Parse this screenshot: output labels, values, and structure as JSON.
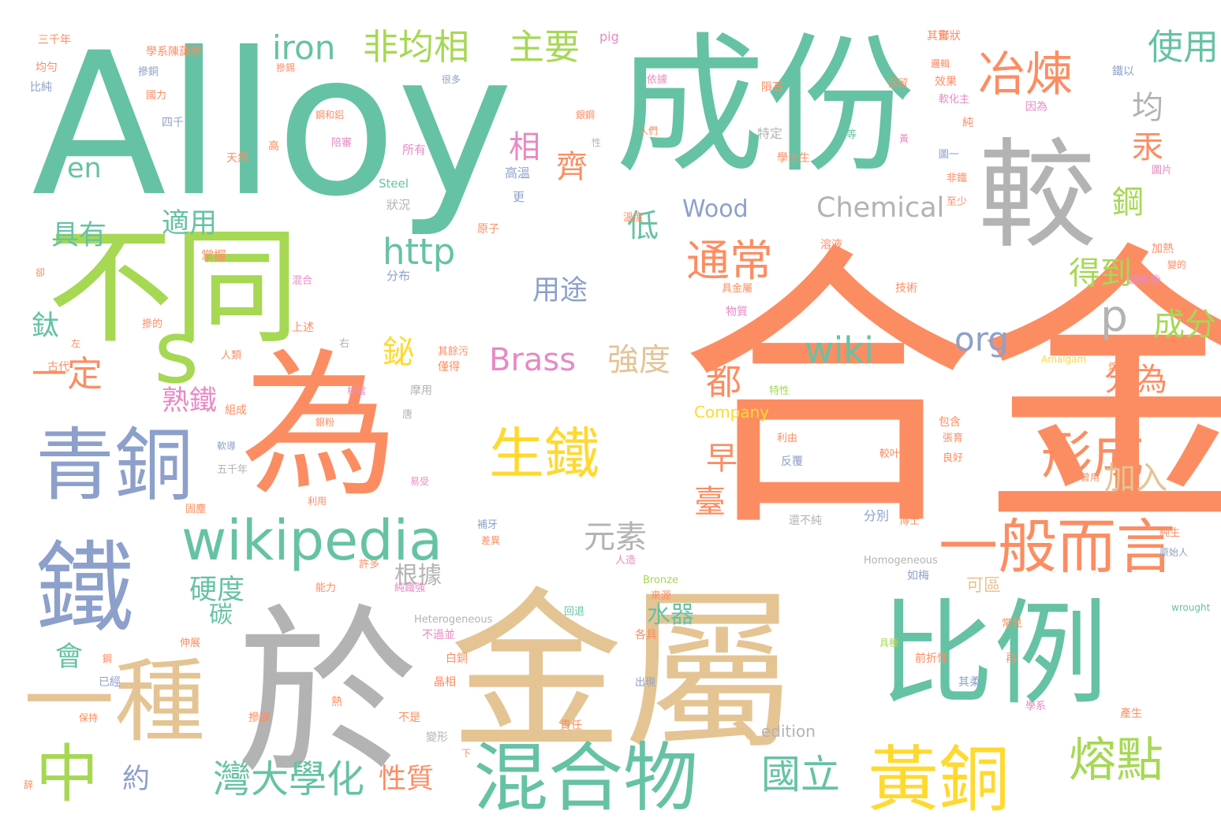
{
  "palette": {
    "orange": "#fc8d62",
    "green": "#66c2a5",
    "blue": "#8da0cb",
    "pink": "#e78ac3",
    "lime": "#a6d854",
    "yellow": "#ffd92f",
    "tan": "#e5c494",
    "gray": "#b3b3b3"
  },
  "words": [
    {
      "text": "合金",
      "color": "orange"
    },
    {
      "text": "Alloy",
      "color": "green"
    },
    {
      "text": "成份",
      "color": "green"
    },
    {
      "text": "金屬",
      "color": "tan"
    },
    {
      "text": "於",
      "color": "gray"
    },
    {
      "text": "為",
      "color": "orange"
    },
    {
      "text": "較",
      "color": "gray"
    },
    {
      "text": "不同",
      "color": "lime"
    },
    {
      "text": "比例",
      "color": "green"
    },
    {
      "text": "s",
      "color": "lime"
    },
    {
      "text": "鐵",
      "color": "blue"
    },
    {
      "text": "青銅",
      "color": "blue"
    },
    {
      "text": "混合物",
      "color": "green"
    },
    {
      "text": "一種",
      "color": "tan"
    },
    {
      "text": "黃銅",
      "color": "yellow"
    },
    {
      "text": "一般而言",
      "color": "orange"
    },
    {
      "text": "wikipedia",
      "color": "green"
    },
    {
      "text": "生鐵",
      "color": "yellow"
    },
    {
      "text": "中",
      "color": "lime"
    },
    {
      "text": "冶煉",
      "color": "orange"
    },
    {
      "text": "形成",
      "color": "orange"
    },
    {
      "text": "熔點",
      "color": "lime"
    },
    {
      "text": "灣大學化",
      "color": "green"
    },
    {
      "text": "通常",
      "color": "orange"
    },
    {
      "text": "國立",
      "color": "green"
    },
    {
      "text": "iron",
      "color": "green"
    },
    {
      "text": "非均相",
      "color": "lime"
    },
    {
      "text": "主要",
      "color": "lime"
    },
    {
      "text": "一定",
      "color": "orange"
    },
    {
      "text": "Brass",
      "color": "pink"
    },
    {
      "text": "強度",
      "color": "tan"
    },
    {
      "text": "http",
      "color": "green"
    },
    {
      "text": "wiki",
      "color": "green"
    },
    {
      "text": "org",
      "color": "blue"
    },
    {
      "text": "元素",
      "color": "gray"
    },
    {
      "text": "p",
      "color": "gray"
    },
    {
      "text": "使用",
      "color": "green"
    },
    {
      "text": "均",
      "color": "gray"
    },
    {
      "text": "汞",
      "color": "orange"
    },
    {
      "text": "鋼",
      "color": "lime"
    },
    {
      "text": "得到",
      "color": "lime"
    },
    {
      "text": "分為",
      "color": "orange"
    },
    {
      "text": "成分",
      "color": "lime"
    },
    {
      "text": "相",
      "color": "pink"
    },
    {
      "text": "齊",
      "color": "orange"
    },
    {
      "text": "低",
      "color": "green"
    },
    {
      "text": "都",
      "color": "orange"
    },
    {
      "text": "鉍",
      "color": "yellow"
    },
    {
      "text": "早",
      "color": "orange"
    },
    {
      "text": "臺",
      "color": "orange"
    },
    {
      "text": "加入",
      "color": "tan"
    },
    {
      "text": "en",
      "color": "green"
    },
    {
      "text": "適用",
      "color": "green"
    },
    {
      "text": "具有",
      "color": "green"
    },
    {
      "text": "鈦",
      "color": "green"
    },
    {
      "text": "熟鐵",
      "color": "pink"
    },
    {
      "text": "Wood",
      "color": "blue"
    },
    {
      "text": "Chemical",
      "color": "gray"
    },
    {
      "text": "用途",
      "color": "blue"
    },
    {
      "text": "硬度",
      "color": "green"
    },
    {
      "text": "根據",
      "color": "gray"
    },
    {
      "text": "水器",
      "color": "green"
    },
    {
      "text": "碳",
      "color": "green"
    },
    {
      "text": "會",
      "color": "green"
    },
    {
      "text": "約",
      "color": "blue"
    },
    {
      "text": "性質",
      "color": "orange"
    },
    {
      "text": "可區",
      "color": "tan"
    },
    {
      "text": "edition",
      "color": "gray"
    },
    {
      "text": "Company",
      "color": "yellow"
    },
    {
      "text": "Principles",
      "color": "orange"
    },
    {
      "text": "Heterogeneous",
      "color": "gray"
    },
    {
      "text": "Homogeneous",
      "color": "gray"
    },
    {
      "text": "Amalgam",
      "color": "yellow"
    },
    {
      "text": "Bronze",
      "color": "lime"
    },
    {
      "text": "Steel",
      "color": "green"
    },
    {
      "text": "wrought",
      "color": "green"
    },
    {
      "text": "pig",
      "color": "pink"
    },
    {
      "text": "學系陳藹然",
      "color": "orange"
    },
    {
      "text": "三千年",
      "color": "orange"
    },
    {
      "text": "均勻",
      "color": "orange"
    },
    {
      "text": "比純",
      "color": "blue"
    },
    {
      "text": "摻銅",
      "color": "blue"
    },
    {
      "text": "國力",
      "color": "orange"
    },
    {
      "text": "四千",
      "color": "blue"
    },
    {
      "text": "很多",
      "color": "blue"
    },
    {
      "text": "摻錫",
      "color": "orange"
    },
    {
      "text": "形狀",
      "color": "orange"
    },
    {
      "text": "邏輯",
      "color": "orange"
    },
    {
      "text": "效果",
      "color": "orange"
    },
    {
      "text": "其實",
      "color": "orange"
    },
    {
      "text": "鐵以",
      "color": "blue"
    },
    {
      "text": "因為",
      "color": "pink"
    },
    {
      "text": "保留",
      "color": "orange"
    },
    {
      "text": "隕石",
      "color": "orange"
    },
    {
      "text": "依據",
      "color": "pink"
    },
    {
      "text": "軟化主",
      "color": "pink"
    },
    {
      "text": "鋼和鋁",
      "color": "orange"
    },
    {
      "text": "陪審",
      "color": "pink"
    },
    {
      "text": "銀鋼",
      "color": "orange"
    },
    {
      "text": "人們",
      "color": "orange"
    },
    {
      "text": "特定",
      "color": "gray"
    },
    {
      "text": "學士生",
      "color": "orange"
    },
    {
      "text": "鋼等",
      "color": "green"
    },
    {
      "text": "圖一",
      "color": "blue"
    },
    {
      "text": "非鐵",
      "color": "orange"
    },
    {
      "text": "圖片",
      "color": "pink"
    },
    {
      "text": "所有",
      "color": "pink"
    },
    {
      "text": "天然",
      "color": "orange"
    },
    {
      "text": "高",
      "color": "orange"
    },
    {
      "text": "性",
      "color": "gray"
    },
    {
      "text": "更",
      "color": "blue"
    },
    {
      "text": "高溫",
      "color": "blue"
    },
    {
      "text": "狀況",
      "color": "gray"
    },
    {
      "text": "至少",
      "color": "orange"
    },
    {
      "text": "溫度",
      "color": "orange"
    },
    {
      "text": "原子",
      "color": "orange"
    },
    {
      "text": "溶液",
      "color": "orange"
    },
    {
      "text": "加熱",
      "color": "orange"
    },
    {
      "text": "掌握",
      "color": "orange"
    },
    {
      "text": "混合",
      "color": "pink"
    },
    {
      "text": "分布",
      "color": "blue"
    },
    {
      "text": "具金屬",
      "color": "orange"
    },
    {
      "text": "技術",
      "color": "orange"
    },
    {
      "text": "鐵碳後",
      "color": "pink"
    },
    {
      "text": "物質",
      "color": "pink"
    },
    {
      "text": "上述",
      "color": "orange"
    },
    {
      "text": "摻的",
      "color": "orange"
    },
    {
      "text": "左",
      "color": "orange"
    },
    {
      "text": "右",
      "color": "gray"
    },
    {
      "text": "方式",
      "color": "orange"
    },
    {
      "text": "人類",
      "color": "orange"
    },
    {
      "text": "其餘污",
      "color": "orange"
    },
    {
      "text": "僅得",
      "color": "orange"
    },
    {
      "text": "古代",
      "color": "orange"
    },
    {
      "text": "相當",
      "color": "pink"
    },
    {
      "text": "摩用",
      "color": "gray"
    },
    {
      "text": "熔融",
      "color": "orange"
    },
    {
      "text": "特性",
      "color": "lime"
    },
    {
      "text": "唐",
      "color": "gray"
    },
    {
      "text": "組成",
      "color": "orange"
    },
    {
      "text": "鐵課",
      "color": "orange"
    },
    {
      "text": "銀粉",
      "color": "orange"
    },
    {
      "text": "利由",
      "color": "orange"
    },
    {
      "text": "包含",
      "color": "orange"
    },
    {
      "text": "張育",
      "color": "orange"
    },
    {
      "text": "軟導",
      "color": "blue"
    },
    {
      "text": "較叶",
      "color": "orange"
    },
    {
      "text": "良好",
      "color": "orange"
    },
    {
      "text": "反覆",
      "color": "blue"
    },
    {
      "text": "五千年",
      "color": "gray"
    },
    {
      "text": "易受",
      "color": "pink"
    },
    {
      "text": "曾用",
      "color": "orange"
    },
    {
      "text": "固塵",
      "color": "orange"
    },
    {
      "text": "利用",
      "color": "orange"
    },
    {
      "text": "還不純",
      "color": "gray"
    },
    {
      "text": "分別",
      "color": "blue"
    },
    {
      "text": "博士",
      "color": "orange"
    },
    {
      "text": "補牙",
      "color": "blue"
    },
    {
      "text": "差異",
      "color": "orange"
    },
    {
      "text": "純生",
      "color": "orange"
    },
    {
      "text": "許多",
      "color": "orange"
    },
    {
      "text": "人造",
      "color": "pink"
    },
    {
      "text": "原始人",
      "color": "blue"
    },
    {
      "text": "如梅",
      "color": "blue"
    },
    {
      "text": "能力",
      "color": "orange"
    },
    {
      "text": "純鐵強",
      "color": "pink"
    },
    {
      "text": "來源",
      "color": "orange"
    },
    {
      "text": "回退",
      "color": "green"
    },
    {
      "text": "不過並",
      "color": "pink"
    },
    {
      "text": "各具",
      "color": "orange"
    },
    {
      "text": "常見",
      "color": "orange"
    },
    {
      "text": "伸展",
      "color": "orange"
    },
    {
      "text": "具種",
      "color": "lime"
    },
    {
      "text": "再",
      "color": "orange"
    },
    {
      "text": "前折性",
      "color": "orange"
    },
    {
      "text": "白銅",
      "color": "orange"
    },
    {
      "text": "其柔",
      "color": "blue"
    },
    {
      "text": "晶相",
      "color": "orange"
    },
    {
      "text": "出現",
      "color": "blue"
    },
    {
      "text": "已經",
      "color": "blue"
    },
    {
      "text": "摻課",
      "color": "orange"
    },
    {
      "text": "熱",
      "color": "orange"
    },
    {
      "text": "不是",
      "color": "orange"
    },
    {
      "text": "學系",
      "color": "pink"
    },
    {
      "text": "產生",
      "color": "orange"
    },
    {
      "text": "保持",
      "color": "orange"
    },
    {
      "text": "變形",
      "color": "gray"
    },
    {
      "text": "責任",
      "color": "orange"
    },
    {
      "text": "下",
      "color": "orange"
    },
    {
      "text": "卻",
      "color": "orange"
    },
    {
      "text": "黃",
      "color": "pink"
    },
    {
      "text": "純",
      "color": "orange"
    },
    {
      "text": "鋼",
      "color": "orange"
    },
    {
      "text": "變的",
      "color": "orange"
    },
    {
      "text": "辞",
      "color": "orange"
    },
    {
      "text": "來",
      "color": "orange"
    }
  ]
}
